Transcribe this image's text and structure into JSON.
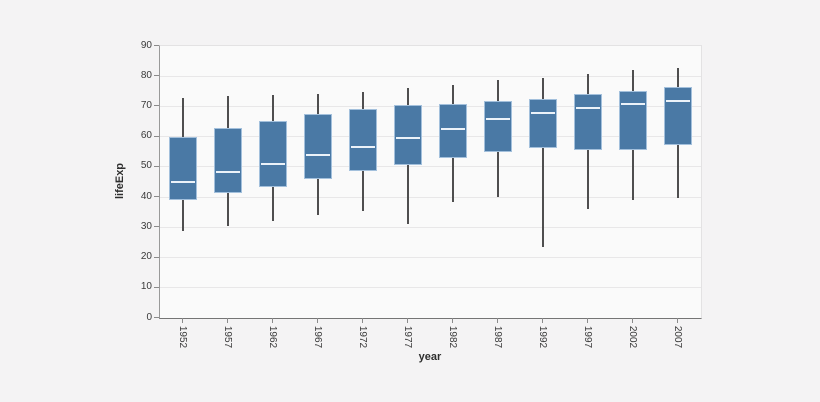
{
  "page": {
    "background_color": "#f4f3f4"
  },
  "chart_data": {
    "type": "box",
    "title": "",
    "xlabel": "year",
    "ylabel": "lifeExp",
    "categories": [
      "1952",
      "1957",
      "1962",
      "1967",
      "1972",
      "1977",
      "1982",
      "1987",
      "1992",
      "1997",
      "2002",
      "2007"
    ],
    "y_ticks": [
      0,
      10,
      20,
      30,
      40,
      50,
      60,
      70,
      80,
      90
    ],
    "ylim": [
      0,
      90
    ],
    "grid": "horizontal-only",
    "legend_position": "none",
    "x_tick_label_rotation_deg": 90,
    "whiskers": "min-max, no caps, no outlier points",
    "series": [
      {
        "category": "1952",
        "min": 28.8,
        "q1": 39.1,
        "median": 45.1,
        "q3": 59.8,
        "max": 72.7
      },
      {
        "category": "1957",
        "min": 30.3,
        "q1": 41.2,
        "median": 48.4,
        "q3": 63.0,
        "max": 73.5
      },
      {
        "category": "1962",
        "min": 32.0,
        "q1": 43.5,
        "median": 50.9,
        "q3": 65.2,
        "max": 73.7
      },
      {
        "category": "1967",
        "min": 34.0,
        "q1": 46.0,
        "median": 53.8,
        "q3": 67.4,
        "max": 74.2
      },
      {
        "category": "1972",
        "min": 35.4,
        "q1": 48.5,
        "median": 56.5,
        "q3": 69.2,
        "max": 74.7
      },
      {
        "category": "1977",
        "min": 31.2,
        "q1": 50.5,
        "median": 59.7,
        "q3": 70.4,
        "max": 76.1
      },
      {
        "category": "1982",
        "min": 38.4,
        "q1": 52.9,
        "median": 62.4,
        "q3": 70.9,
        "max": 77.1
      },
      {
        "category": "1987",
        "min": 39.9,
        "q1": 54.9,
        "median": 65.8,
        "q3": 71.9,
        "max": 78.7
      },
      {
        "category": "1992",
        "min": 23.6,
        "q1": 56.1,
        "median": 67.7,
        "q3": 72.5,
        "max": 79.4
      },
      {
        "category": "1997",
        "min": 36.1,
        "q1": 55.6,
        "median": 69.4,
        "q3": 74.2,
        "max": 80.7
      },
      {
        "category": "2002",
        "min": 39.2,
        "q1": 55.5,
        "median": 70.8,
        "q3": 75.1,
        "max": 82.0
      },
      {
        "category": "2007",
        "min": 39.6,
        "q1": 57.2,
        "median": 71.9,
        "q3": 76.4,
        "max": 82.6
      }
    ],
    "colors": {
      "box_fill": "#4a79a5",
      "box_border": "#a3c0dc",
      "median_line": "#ebf2f9",
      "whisker": "#4f4e4f",
      "gridline": "#e8e7e8",
      "plot_background": "#fafafa",
      "page_background": "#f4f3f4",
      "tick_text": "#3a3a3a",
      "axis_title_text": "#2e2e2e"
    }
  }
}
